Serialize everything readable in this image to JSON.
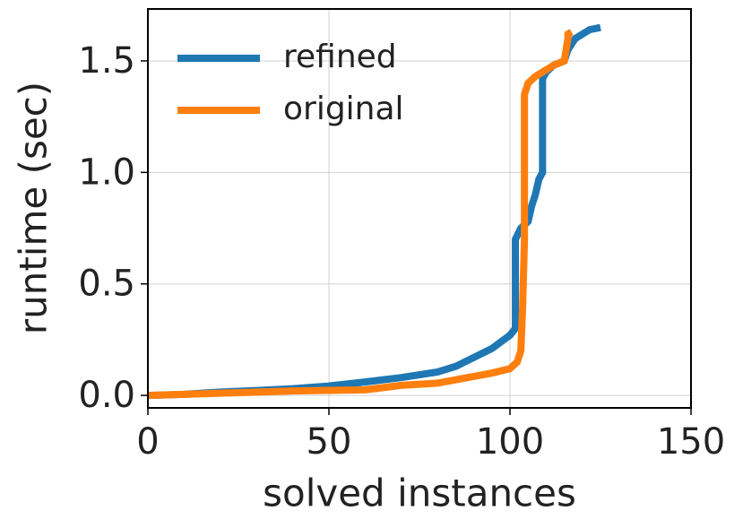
{
  "chart_data": {
    "type": "line",
    "x_label": "solved instances",
    "y_label": "runtime (sec)",
    "xlim": [
      0,
      150
    ],
    "ylim": [
      -0.056,
      1.733
    ],
    "xticks": [
      0,
      50,
      100,
      150
    ],
    "yticks": [
      {
        "value": 0,
        "label": "0.0"
      },
      0.5,
      {
        "value": 1,
        "label": "1.0"
      },
      1.5
    ],
    "grid": true,
    "legend": "upper left",
    "series": [
      {
        "name": "refined",
        "color": "#1f77b4",
        "x": [
          0,
          10,
          20,
          30,
          40,
          50,
          60,
          70,
          80,
          85,
          90,
          95,
          100,
          101.5,
          101.5,
          103,
          105,
          106,
          107,
          108,
          109,
          109,
          110,
          112,
          115,
          116,
          118,
          120,
          122,
          125
        ],
        "values": [
          0.0,
          0.005,
          0.015,
          0.022,
          0.03,
          0.042,
          0.06,
          0.08,
          0.105,
          0.13,
          0.17,
          0.21,
          0.27,
          0.3,
          0.7,
          0.75,
          0.78,
          0.85,
          0.9,
          0.97,
          1.0,
          1.42,
          1.45,
          1.48,
          1.5,
          1.55,
          1.6,
          1.62,
          1.64,
          1.65
        ]
      },
      {
        "name": "original",
        "color": "#ff7f0e",
        "x": [
          0,
          20,
          40,
          60,
          65,
          70,
          80,
          85,
          90,
          95,
          100,
          102,
          103,
          103.5,
          104,
          104,
          105,
          107,
          110,
          112,
          115,
          116,
          116,
          117
        ],
        "values": [
          0.0,
          0.01,
          0.02,
          0.025,
          0.035,
          0.045,
          0.055,
          0.07,
          0.085,
          0.1,
          0.12,
          0.15,
          0.2,
          0.4,
          0.7,
          1.35,
          1.4,
          1.43,
          1.46,
          1.48,
          1.5,
          1.6,
          1.62,
          1.63
        ]
      }
    ]
  }
}
